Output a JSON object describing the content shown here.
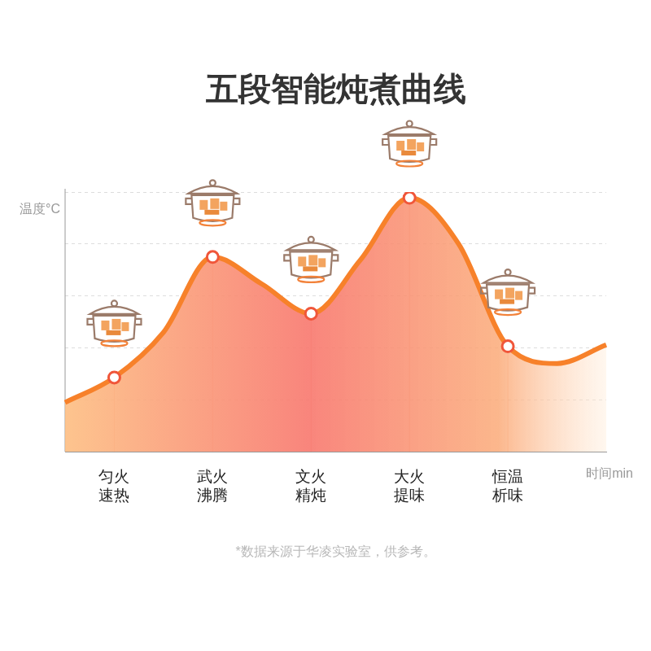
{
  "chart_data": {
    "type": "line",
    "title": "五段智能炖煮曲线",
    "y_label": "温度°C",
    "x_label": "时间min",
    "note": "*数据来源于华凌实验室，供参考。",
    "categories": [
      null,
      "匀火\n速热",
      null,
      "武火\n沸腾",
      null,
      "文火\n精炖",
      null,
      "大火\n提味",
      null,
      "恒温\n析味",
      null,
      null
    ],
    "values": [
      0.95,
      1.43,
      2.3,
      3.75,
      3.23,
      2.66,
      3.69,
      4.89,
      4.0,
      2.03,
      1.7,
      2.06
    ],
    "color": "#f7812a",
    "marker": "circle",
    "ylim": [
      0,
      5
    ],
    "yticks": [
      0,
      1,
      2,
      3,
      4,
      5
    ],
    "grid": true,
    "tick_labels": "x"
  }
}
